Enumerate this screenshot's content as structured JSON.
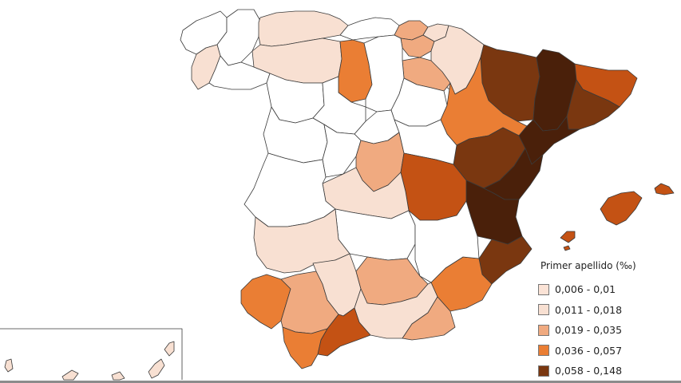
{
  "colors": {
    "class_1": "#fbe3d6",
    "class_2": "#f8e0d2",
    "class_3": "#f0aa80",
    "class_4": "#ea7e34",
    "class_5": "#7a3710",
    "darkest": "#4a200a",
    "deep_orange": "#c45214",
    "no_data": "#ffffff"
  },
  "legend": {
    "title": "Primer apellido (‰)",
    "items": [
      {
        "label": "0,006 - 0,01",
        "color": "#fbe3d6"
      },
      {
        "label": "0,011 - 0,018",
        "color": "#f8e0d2"
      },
      {
        "label": "0,019 - 0,035",
        "color": "#f0aa80"
      },
      {
        "label": "0,036 - 0,057",
        "color": "#ea7e34"
      },
      {
        "label": "0,058 - 0,148",
        "color": "#7a3710"
      }
    ]
  }
}
